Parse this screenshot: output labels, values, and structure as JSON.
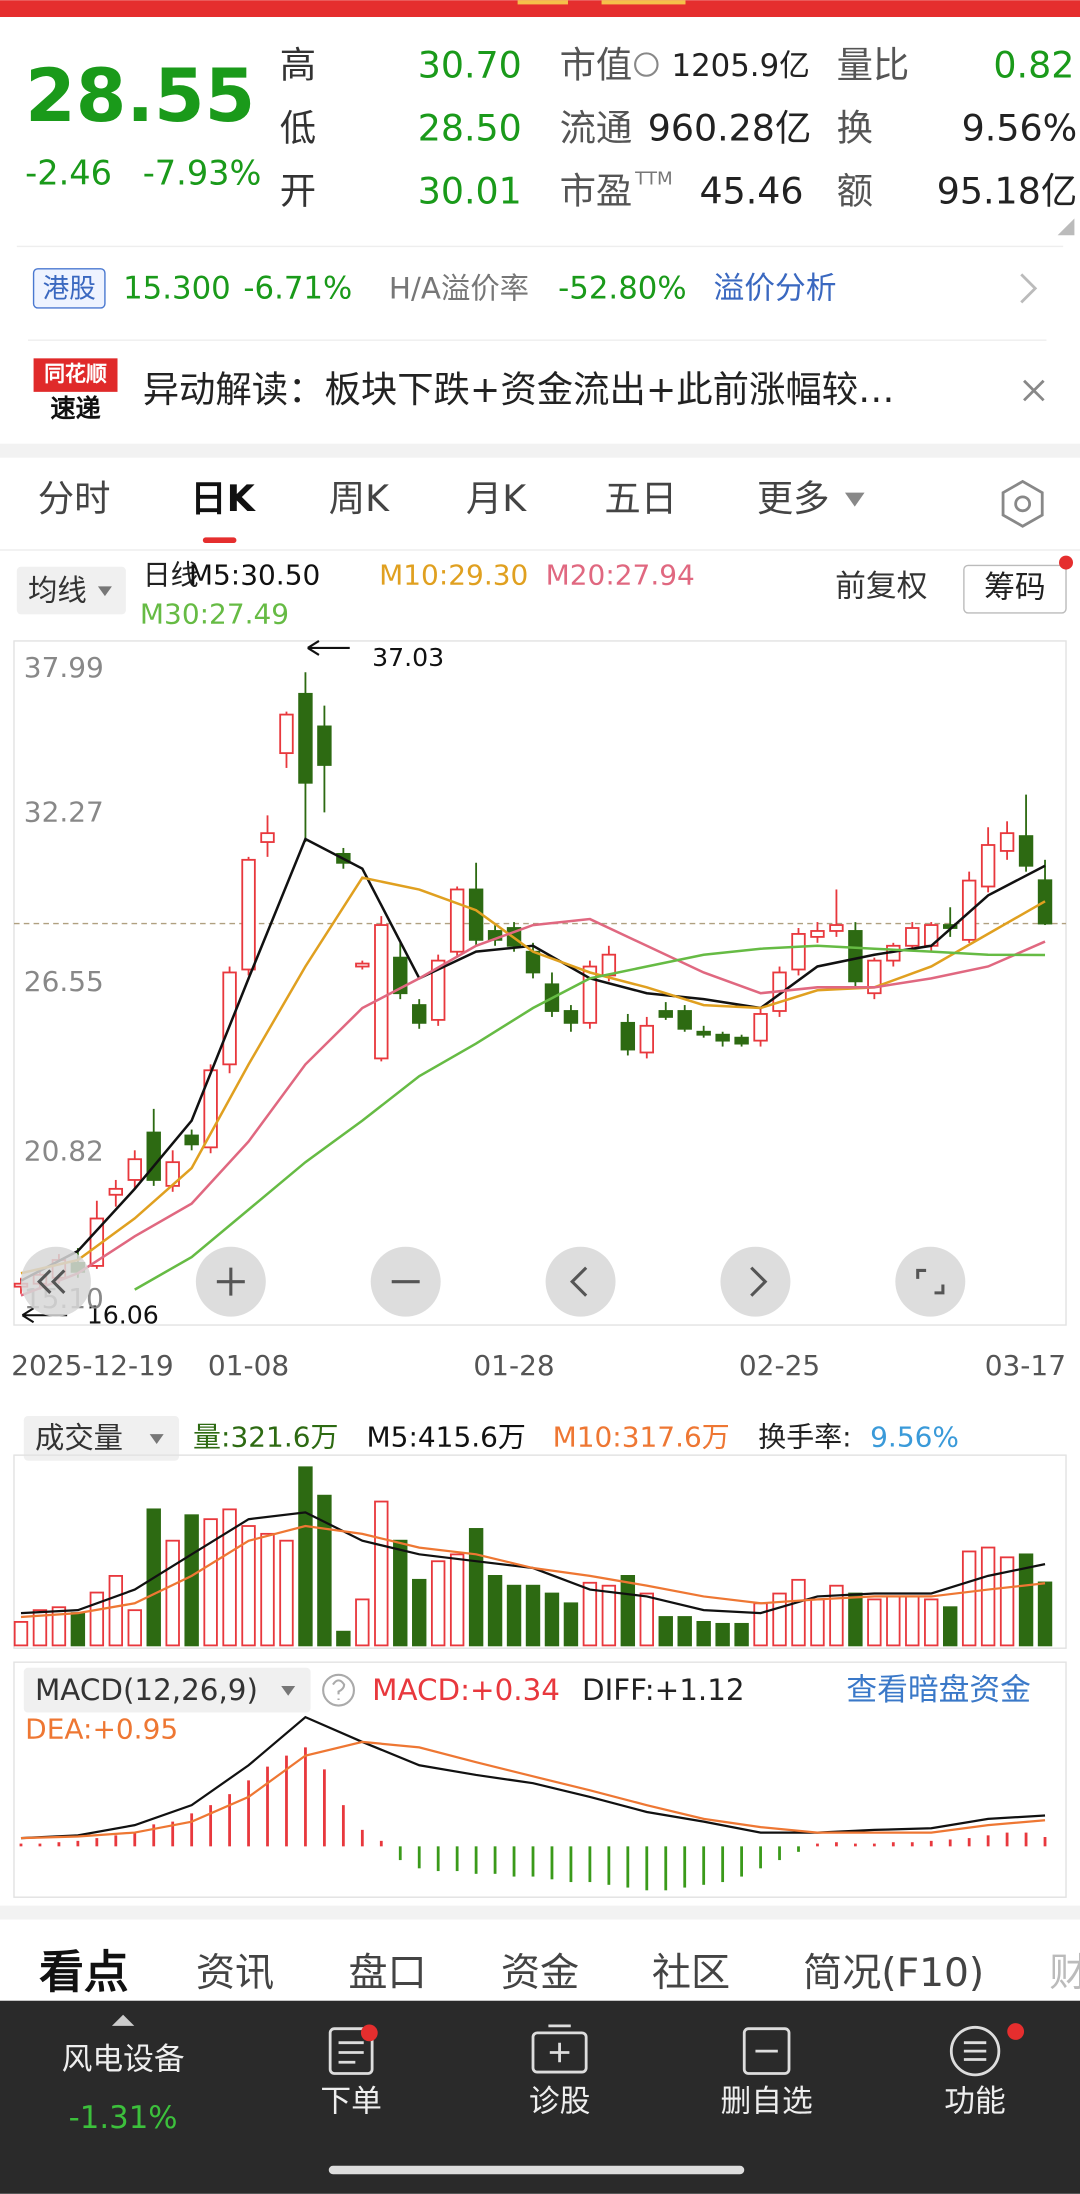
{
  "quote": {
    "price": 28.55,
    "change": "-2.46",
    "pct": "-7.93%",
    "stats": [
      [
        "高",
        "30.70"
      ],
      [
        "低",
        "28.50"
      ],
      [
        "开",
        "30.01"
      ]
    ],
    "mid": [
      [
        "市值",
        "1205.9亿"
      ],
      [
        "流通",
        "960.28亿"
      ],
      [
        "市盈",
        "TTM",
        "45.46"
      ]
    ],
    "right": [
      [
        "量比",
        "0.82"
      ],
      [
        "换",
        "9.56%"
      ],
      [
        "额",
        "95.18亿"
      ]
    ]
  },
  "hk": {
    "tag": "港股",
    "price": "15.300",
    "pct": "-6.71%",
    "premium_label": "H/A溢价率",
    "premium": "-52.80%",
    "link": "溢价分析"
  },
  "news": {
    "logo_top": "同花顺",
    "logo_bottom": "速递",
    "text": "异动解读：板块下跌+资金流出+此前涨幅较…"
  },
  "tabs": [
    "分时",
    "日K",
    "周K",
    "月K",
    "五日",
    "更多"
  ],
  "kline": {
    "ma_button": "均线",
    "period": "日线",
    "ma_labels": [
      "M5:30.50",
      "M10:29.30",
      "M20:27.94",
      "M30:27.49"
    ],
    "adjust": "前复权",
    "chips": "筹码",
    "ylim": [
      15.1,
      37.99
    ],
    "yticks": [
      37.99,
      32.27,
      26.55,
      20.82,
      {
        "value": 15.1,
        "label": "15.10"
      }
    ],
    "up_color": "#e8383d",
    "down_color": "#2d6a12",
    "categories": [
      "2025-12-19",
      null,
      null,
      null,
      null,
      null,
      null,
      null,
      null,
      null,
      null,
      null,
      "01-08",
      null,
      null,
      null,
      null,
      null,
      null,
      null,
      null,
      null,
      null,
      null,
      null,
      null,
      "01-28",
      null,
      null,
      null,
      null,
      null,
      null,
      null,
      null,
      null,
      null,
      null,
      null,
      null,
      "02-25",
      null,
      null,
      null,
      null,
      null,
      null,
      null,
      null,
      null,
      null,
      null,
      null,
      null,
      "03-17"
    ],
    "open": [
      16.3,
      16.4,
      16.6,
      17.1,
      17.0,
      19.4,
      19.9,
      21.5,
      19.7,
      21.4,
      21.0,
      23.8,
      27.0,
      31.3,
      34.3,
      36.3,
      35.2,
      30.9,
      27.1,
      24.0,
      27.4,
      25.8,
      25.3,
      27.6,
      29.7,
      28.3,
      28.4,
      27.6,
      26.5,
      25.6,
      25.2,
      26.8,
      25.2,
      24.2,
      25.6,
      25.6,
      24.9,
      24.8,
      24.7,
      24.6,
      25.6,
      27.0,
      28.1,
      28.3,
      28.3,
      26.2,
      27.3,
      27.8,
      27.8,
      28.5,
      28.0,
      29.8,
      31.0,
      31.5,
      30.01
    ],
    "high": [
      16.6,
      16.9,
      17.4,
      17.6,
      19.2,
      19.9,
      20.9,
      22.3,
      20.9,
      21.6,
      23.8,
      27.1,
      30.8,
      32.2,
      35.7,
      37.03,
      35.9,
      31.1,
      27.3,
      28.8,
      27.9,
      26.0,
      27.5,
      29.8,
      30.6,
      28.5,
      28.6,
      27.9,
      26.9,
      25.8,
      27.3,
      27.8,
      25.5,
      25.4,
      25.9,
      25.8,
      25.1,
      24.9,
      24.8,
      25.7,
      27.1,
      28.4,
      28.6,
      29.7,
      28.6,
      27.4,
      27.9,
      28.6,
      28.6,
      29.1,
      30.3,
      31.8,
      32.0,
      32.9,
      30.7
    ],
    "low": [
      16.06,
      16.2,
      16.4,
      16.6,
      16.9,
      19.0,
      19.6,
      19.7,
      19.5,
      20.9,
      20.8,
      23.5,
      26.8,
      30.8,
      33.8,
      31.3,
      32.3,
      30.4,
      27.0,
      23.9,
      26.0,
      25.0,
      25.1,
      27.4,
      27.8,
      27.8,
      27.6,
      26.7,
      25.4,
      24.9,
      25.0,
      26.6,
      24.1,
      24.0,
      25.3,
      24.9,
      24.7,
      24.4,
      24.4,
      24.4,
      25.4,
      26.8,
      27.9,
      28.1,
      26.4,
      26.0,
      27.1,
      27.7,
      27.6,
      28.1,
      27.9,
      29.6,
      30.7,
      30.3,
      28.5
    ],
    "close": [
      16.4,
      16.7,
      17.2,
      16.8,
      18.6,
      19.6,
      20.6,
      19.9,
      20.5,
      21.1,
      23.6,
      26.9,
      30.7,
      31.6,
      35.6,
      33.3,
      33.9,
      30.6,
      27.2,
      28.5,
      26.2,
      25.2,
      27.3,
      29.7,
      28.0,
      28.0,
      27.8,
      26.9,
      25.6,
      25.2,
      27.1,
      27.5,
      24.3,
      25.1,
      25.4,
      25.0,
      24.8,
      24.6,
      24.5,
      25.5,
      26.9,
      28.2,
      28.3,
      28.5,
      26.6,
      27.3,
      27.8,
      28.4,
      28.5,
      28.4,
      30.0,
      31.2,
      31.6,
      30.5,
      28.55
    ],
    "ma_x": [
      0,
      3,
      6,
      9,
      12,
      15,
      18,
      21,
      24,
      27,
      30,
      33,
      36,
      39,
      42,
      45,
      48,
      51,
      54
    ],
    "ma_lines": [
      {
        "color": "#111111",
        "values": [
          16.5,
          17.5,
          19.6,
          21.9,
          26.7,
          31.4,
          30.4,
          26.7,
          27.6,
          27.8,
          26.7,
          26.2,
          26.0,
          25.7,
          27.1,
          27.5,
          27.8,
          29.5,
          30.5
        ]
      },
      {
        "color": "#e0a020",
        "values": [
          16.75,
          17.2,
          18.6,
          20.3,
          23.8,
          27.1,
          30.1,
          29.7,
          29.0,
          27.6,
          26.9,
          26.4,
          25.8,
          25.7,
          26.3,
          26.4,
          27.1,
          28.2,
          29.3
        ]
      },
      {
        "color": "#e06880",
        "values": [
          16.0,
          16.75,
          18.0,
          19.1,
          21.2,
          23.8,
          25.7,
          26.7,
          27.8,
          28.5,
          28.7,
          27.8,
          26.9,
          26.2,
          26.4,
          26.4,
          26.7,
          27.1,
          27.94
        ]
      },
      {
        "color": "#66bb44",
        "values": [
          null,
          null,
          16.2,
          17.3,
          18.9,
          20.5,
          21.9,
          23.4,
          24.5,
          25.7,
          26.7,
          27.1,
          27.5,
          27.7,
          27.8,
          27.7,
          27.6,
          27.5,
          27.49
        ]
      }
    ],
    "high_mark": 37.03,
    "low_mark": 16.06
  },
  "volume": {
    "button": "成交量",
    "vol": "量:321.6万",
    "m5": "M5:415.6万",
    "m10": "M10:317.6万",
    "turnover_label": "换手率:",
    "turnover": "9.56%",
    "ylim": [
      0,
      965
    ],
    "values": [
      120,
      180,
      195,
      165,
      270,
      355,
      180,
      695,
      535,
      665,
      645,
      695,
      610,
      570,
      535,
      910,
      765,
      70,
      235,
      735,
      535,
      335,
      430,
      465,
      595,
      355,
      305,
      305,
      265,
      215,
      320,
      305,
      355,
      265,
      145,
      145,
      120,
      110,
      110,
      215,
      265,
      335,
      235,
      305,
      265,
      235,
      250,
      250,
      235,
      195,
      480,
      500,
      450,
      465,
      321.6
    ],
    "ma": [
      {
        "color": "#111111",
        "values": [
          165,
          180,
          285,
          465,
          645,
          680,
          535,
          465,
          430,
          395,
          285,
          250,
          180,
          165,
          250,
          265,
          265,
          355,
          415.6
        ]
      },
      {
        "color": "#ee7733",
        "values": [
          145,
          165,
          215,
          355,
          535,
          610,
          570,
          500,
          465,
          395,
          355,
          305,
          250,
          215,
          235,
          250,
          250,
          285,
          317.6
        ]
      }
    ]
  },
  "macd": {
    "button": "MACD(12,26,9)",
    "macd": "MACD:+0.34",
    "diff_label": "DIFF:+1.12",
    "dea_label": "DEA:+0.95",
    "link": "查看暗盘资金",
    "ylim": [
      -1.8,
      6.6
    ],
    "hist": [
      0.1,
      0.1,
      0.15,
      0.2,
      0.3,
      0.4,
      0.5,
      0.8,
      0.9,
      1.2,
      1.5,
      1.9,
      2.4,
      2.9,
      3.3,
      3.6,
      2.8,
      1.5,
      0.6,
      0.2,
      -0.5,
      -0.8,
      -0.9,
      -0.9,
      -1.0,
      -1.0,
      -1.1,
      -1.1,
      -1.2,
      -1.3,
      -1.3,
      -1.4,
      -1.5,
      -1.6,
      -1.6,
      -1.5,
      -1.4,
      -1.3,
      -1.1,
      -0.8,
      -0.5,
      -0.2,
      0.1,
      0.15,
      0.1,
      0.1,
      0.15,
      0.15,
      0.2,
      0.25,
      0.3,
      0.4,
      0.5,
      0.5,
      0.34
    ],
    "diff": {
      "color": "#111111",
      "values": [
        0.3,
        0.4,
        0.77,
        1.5,
        2.95,
        4.7,
        3.8,
        2.95,
        2.6,
        2.3,
        1.8,
        1.25,
        0.9,
        0.5,
        0.5,
        0.6,
        0.66,
        1.0,
        1.12
      ]
    },
    "dea": {
      "color": "#ee7733",
      "values": [
        0.3,
        0.36,
        0.5,
        0.9,
        1.8,
        3.3,
        3.8,
        3.6,
        3.06,
        2.55,
        2.04,
        1.5,
        1.0,
        0.7,
        0.5,
        0.5,
        0.5,
        0.77,
        0.95
      ]
    }
  },
  "bottom_tabs": [
    "看点",
    "资讯",
    "盘口",
    "资金",
    "社区",
    "简况(F10)",
    "财"
  ],
  "nav": {
    "sector": "风电设备",
    "sector_pct": "-1.31%",
    "items": [
      "下单",
      "诊股",
      "删自选",
      "功能"
    ]
  }
}
